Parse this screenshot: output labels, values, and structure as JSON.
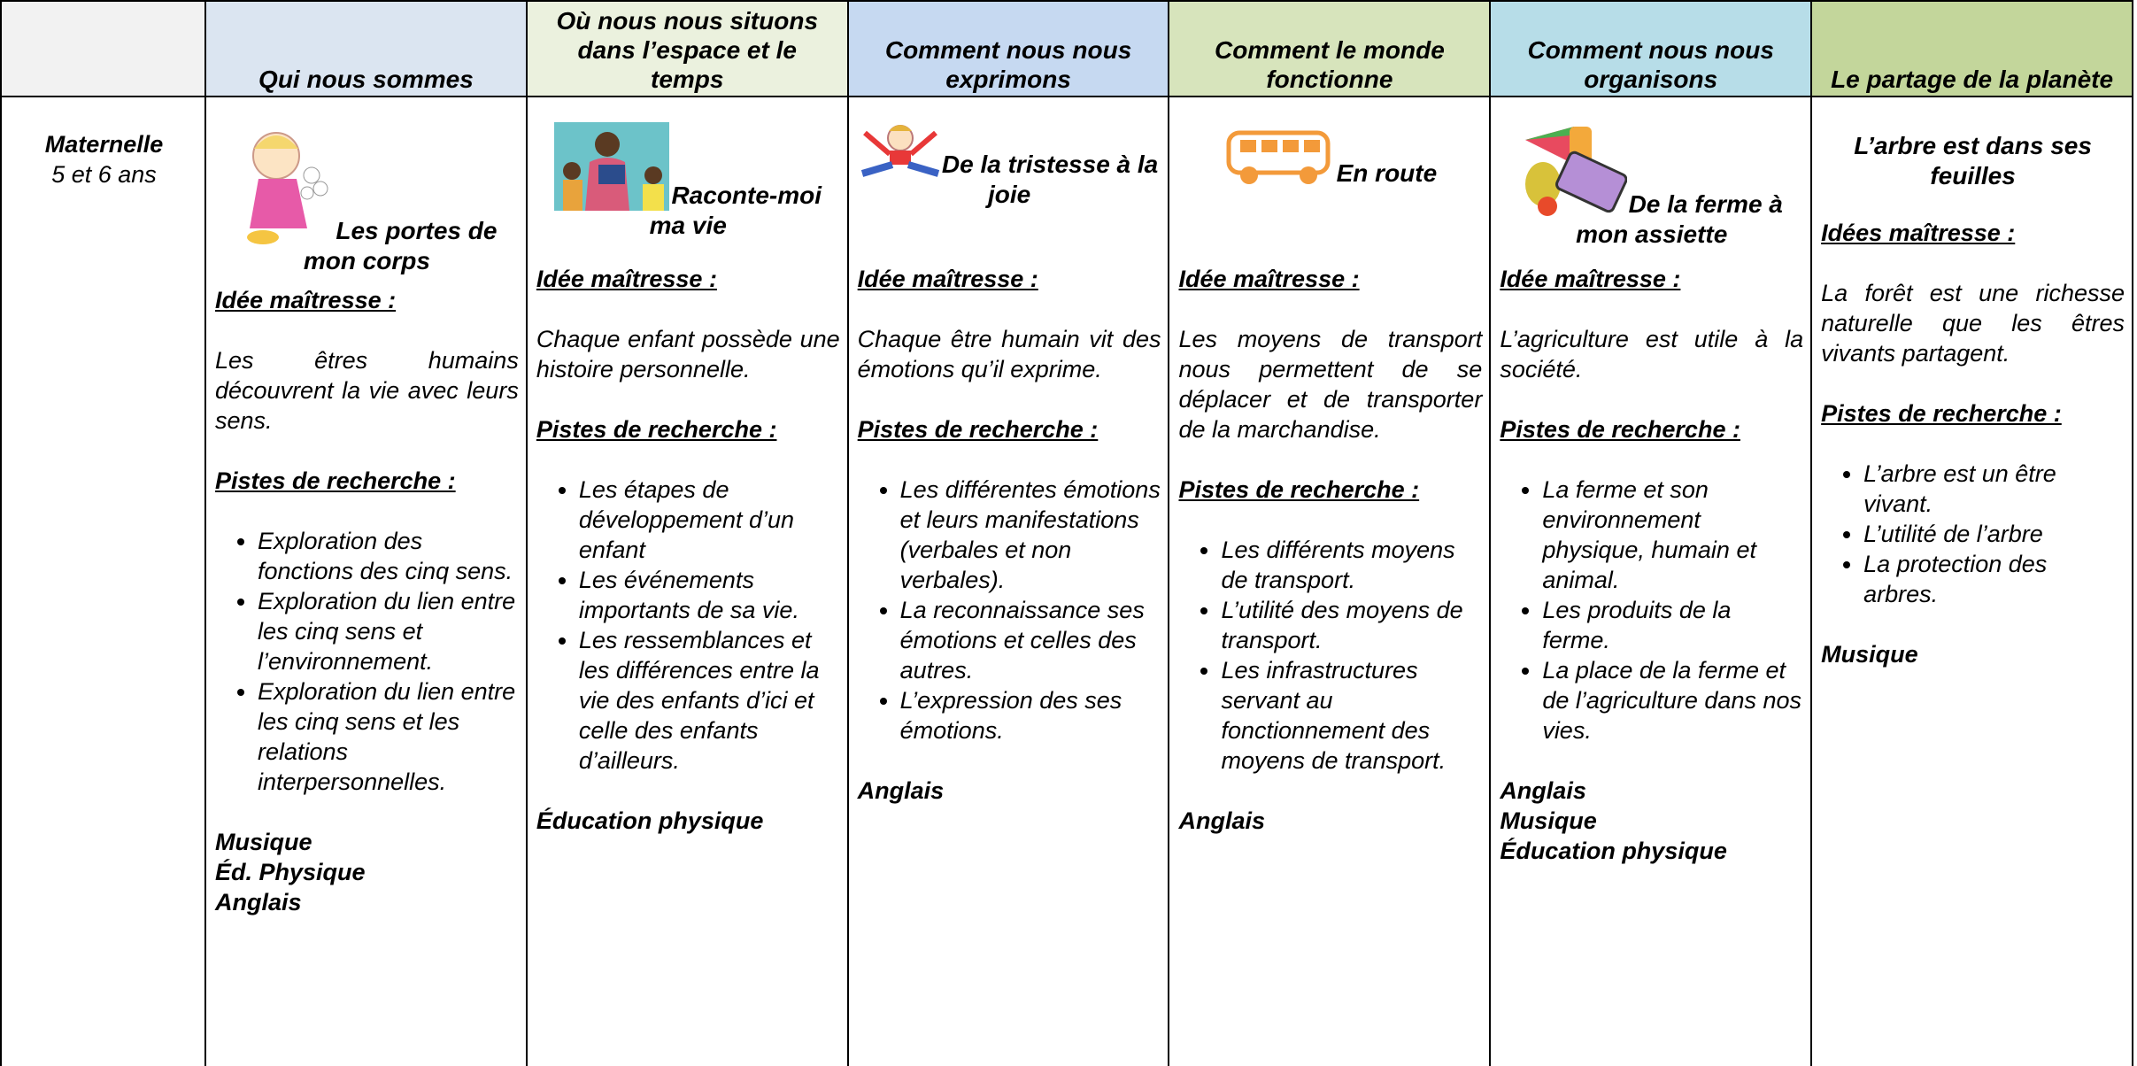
{
  "header": {
    "columns": [
      "Qui nous sommes",
      "Où nous nous situons dans l’espace et le temps",
      "Comment nous nous exprimons",
      "Comment le monde fonctionne",
      "Comment nous nous organisons",
      "Le partage de la planète"
    ]
  },
  "row": {
    "level": "Maternelle",
    "age": "5 et 6 ans"
  },
  "cells": [
    {
      "title": "Les portes de mon corps",
      "idea_label": "Idée maîtresse :",
      "idea": "Les êtres humains découvrent la vie avec leurs sens.",
      "research_label": "Pistes de recherche :",
      "research": [
        "Exploration des fonctions des cinq sens.",
        "Exploration du lien entre les cinq sens et l’environnement.",
        "Exploration du lien entre les cinq sens et les relations interpersonnelles."
      ],
      "subjects": [
        "Musique",
        "Éd. Physique",
        "Anglais"
      ]
    },
    {
      "title": "Raconte-moi ma vie",
      "idea_label": "Idée maîtresse :",
      "idea": "Chaque enfant possède une histoire personnelle.",
      "research_label": "Pistes de recherche :",
      "research": [
        "Les étapes de développement d’un enfant",
        "Les événements importants de sa vie.",
        "Les ressemblances et les différences entre la vie des enfants d’ici et celle des enfants d’ailleurs."
      ],
      "subjects": [
        "Éducation physique"
      ]
    },
    {
      "title": "De la tristesse à la joie",
      "idea_label": "Idée maîtresse :",
      "idea": "Chaque être humain vit des émotions qu’il exprime.",
      "research_label": "Pistes de recherche :",
      "research": [
        "Les différentes émotions et leurs manifestations (verbales et non verbales).",
        "La reconnaissance ses émotions et celles des autres.",
        "L’expression des ses émotions."
      ],
      "subjects": [
        "Anglais"
      ]
    },
    {
      "title": "En route",
      "idea_label": "Idée maîtresse :",
      "idea": "Les moyens de transport nous permettent de se déplacer et de transporter de la marchandise.",
      "research_label": "Pistes de recherche :",
      "research": [
        "Les différents moyens de transport.",
        "L’utilité des moyens de transport.",
        "Les infrastructures servant au fonctionnement des moyens de transport."
      ],
      "subjects": [
        "Anglais"
      ]
    },
    {
      "title": "De la ferme à mon assiette",
      "idea_label": "Idée maîtresse :",
      "idea": "L’agriculture est utile à la société.",
      "research_label": "Pistes de recherche :",
      "research": [
        "La ferme et son environnement physique, humain et animal.",
        "Les produits de la ferme.",
        "La place de la ferme et de l’agriculture dans nos vies."
      ],
      "subjects": [
        "Anglais",
        "Musique",
        "Éducation physique"
      ]
    },
    {
      "title": "L’arbre est dans ses feuilles",
      "idea_label": "Idées maîtresse :",
      "idea": "La forêt est une richesse naturelle que les êtres vivants partagent.",
      "research_label": "Pistes de recherche :",
      "research": [
        "L’arbre est un être vivant.",
        "L’utilité de l’arbre",
        "La protection des arbres."
      ],
      "subjects": [
        "Musique"
      ]
    }
  ]
}
